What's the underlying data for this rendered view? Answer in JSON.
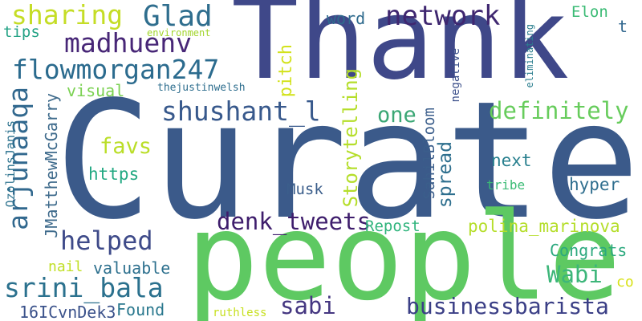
{
  "words": [
    {
      "id": "thank",
      "text": "Thank",
      "color": "#3f4889"
    },
    {
      "id": "curate",
      "text": "Curate",
      "color": "#3b5a8a"
    },
    {
      "id": "people",
      "text": "people",
      "color": "#5ec962"
    },
    {
      "id": "sharing",
      "text": "sharing",
      "color": "#c5dd26"
    },
    {
      "id": "glad",
      "text": "Glad",
      "color": "#2f6e8e"
    },
    {
      "id": "network",
      "text": "network",
      "color": "#3f2770"
    },
    {
      "id": "madhuenv",
      "text": "madhuenv",
      "color": "#482777"
    },
    {
      "id": "flowmorgan247",
      "text": "flowmorgan247",
      "color": "#2b6b8e"
    },
    {
      "id": "tips",
      "text": "tips",
      "color": "#25a386"
    },
    {
      "id": "environment",
      "text": "environment",
      "color": "#a2d52c"
    },
    {
      "id": "word",
      "text": "word",
      "color": "#2f6b8e"
    },
    {
      "id": "elon",
      "text": "Elon",
      "color": "#3bbb75"
    },
    {
      "id": "t",
      "text": "t",
      "color": "#31678e"
    },
    {
      "id": "arjunaaqa",
      "text": "arjunaaqa",
      "color": "#31688e"
    },
    {
      "id": "visual",
      "text": "visual",
      "color": "#7ad151"
    },
    {
      "id": "thejustinwelsh",
      "text": "thejustinwelsh",
      "color": "#2e6e8e"
    },
    {
      "id": "shushant",
      "text": "shushant_l",
      "color": "#38598c"
    },
    {
      "id": "one",
      "text": "one",
      "color": "#3ba775"
    },
    {
      "id": "definitely",
      "text": "definitely",
      "color": "#67cc5c"
    },
    {
      "id": "favs",
      "text": "favs",
      "color": "#bade28"
    },
    {
      "id": "https",
      "text": "https",
      "color": "#23a983"
    },
    {
      "id": "next",
      "text": "next",
      "color": "#277f8e"
    },
    {
      "id": "hyper",
      "text": "hyper",
      "color": "#2f6e8e"
    },
    {
      "id": "tribe",
      "text": "tribe",
      "color": "#3bbb75"
    },
    {
      "id": "musk",
      "text": "Musk",
      "color": "#3b5e8b"
    },
    {
      "id": "denk",
      "text": "denk_tweets",
      "color": "#3e1d6c"
    },
    {
      "id": "helped",
      "text": "helped",
      "color": "#3e4a89"
    },
    {
      "id": "repost",
      "text": "Repost",
      "color": "#2fb47c"
    },
    {
      "id": "polina",
      "text": "polina_marinova",
      "color": "#b5de2b"
    },
    {
      "id": "congrats",
      "text": "Congrats",
      "color": "#2ca97e"
    },
    {
      "id": "nail",
      "text": "nail",
      "color": "#c0df25"
    },
    {
      "id": "valuable",
      "text": "valuable",
      "color": "#2d708e"
    },
    {
      "id": "wabi",
      "text": "Wabi",
      "color": "#3db67a"
    },
    {
      "id": "co",
      "text": "co",
      "color": "#d8e219"
    },
    {
      "id": "srini",
      "text": "srini_bala",
      "color": "#2b718e"
    },
    {
      "id": "sabi",
      "text": "sabi",
      "color": "#453781"
    },
    {
      "id": "businessbarista",
      "text": "businessbarista",
      "color": "#3b3f86"
    },
    {
      "id": "found",
      "text": "Found",
      "color": "#2a788e"
    },
    {
      "id": "ruthless",
      "text": "ruthless",
      "color": "#c7e020"
    },
    {
      "id": "16icvn",
      "text": "16ICvnDek3",
      "color": "#3b528b"
    },
    {
      "id": "ozolins",
      "text": "OzolinsJanis",
      "color": "#2c728e"
    },
    {
      "id": "jmatthew",
      "text": "JMatthewMcGarry",
      "color": "#3f6b8c"
    },
    {
      "id": "pitch",
      "text": "pitch",
      "color": "#d2e21b"
    },
    {
      "id": "storytelling",
      "text": "Storytelling",
      "color": "#b5de2b"
    },
    {
      "id": "sahilbloom",
      "text": "SahilBloom",
      "color": "#3b5e8b"
    },
    {
      "id": "spread",
      "text": "spread",
      "color": "#2e6f8e"
    },
    {
      "id": "negative",
      "text": "negative",
      "color": "#3b4f8a"
    },
    {
      "id": "eliminating",
      "text": "eliminating",
      "color": "#2a7e8e"
    }
  ]
}
